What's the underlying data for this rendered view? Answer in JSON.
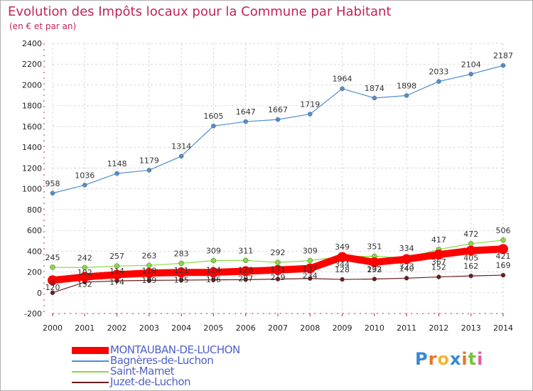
{
  "header": {
    "title": "Evolution des Impôts locaux pour la Commune par Habitant",
    "subtitle": "(en € et par an)"
  },
  "logo": {
    "text": "Proxiti",
    "letter_colors": [
      "#3a87d6",
      "#e8742a",
      "#f2b632",
      "#3a87d6",
      "#e8742a",
      "#7bbf3a",
      "#e85a9b"
    ]
  },
  "chart_data": {
    "type": "line",
    "title": "Evolution des Impôts locaux pour la Commune par Habitant",
    "subtitle": "(en € et par an)",
    "xlabel": "",
    "ylabel": "",
    "x": [
      2000,
      2001,
      2002,
      2003,
      2004,
      2005,
      2006,
      2007,
      2008,
      2009,
      2010,
      2011,
      2012,
      2013,
      2014
    ],
    "ylim": [
      -200,
      2400
    ],
    "yticks": [
      -200,
      0,
      200,
      400,
      600,
      800,
      1000,
      1200,
      1400,
      1600,
      1800,
      2000,
      2200,
      2400
    ],
    "grid": true,
    "legend_position": "bottom-left",
    "series": [
      {
        "name": "MONTAUBAN-DE-LUCHON",
        "color": "#ff0000",
        "values": [
          120,
          152,
          174,
          189,
          195,
          196,
          207,
          219,
          234,
          344,
          293,
          323,
          367,
          405,
          421
        ]
      },
      {
        "name": "Bagnères-de-Luchon",
        "color": "#4f8fd0",
        "values": [
          958,
          1036,
          1148,
          1179,
          1314,
          1605,
          1647,
          1667,
          1719,
          1964,
          1874,
          1898,
          2033,
          2104,
          2187
        ]
      },
      {
        "name": "Saint-Mamet",
        "color": "#88d840",
        "values": [
          245,
          242,
          257,
          263,
          283,
          309,
          311,
          292,
          309,
          349,
          351,
          334,
          417,
          472,
          506
        ]
      },
      {
        "name": "Juzet-de-Luchon",
        "color": "#6b1d1d",
        "values": [
          0,
          102,
          114,
          119,
          121,
          124,
          126,
          131,
          137,
          128,
          132,
          140,
          152,
          162,
          169
        ]
      }
    ]
  }
}
